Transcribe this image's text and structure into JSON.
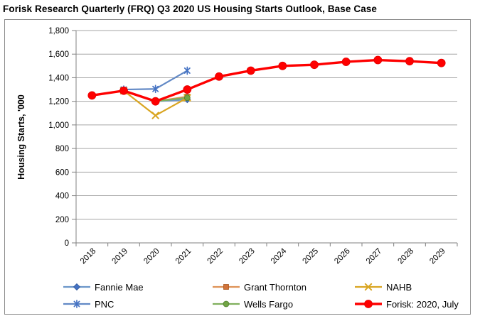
{
  "chart_data": {
    "type": "line",
    "title": "Forisk Research Quarterly (FRQ) Q3 2020 US Housing Starts Outlook, Base Case",
    "xlabel": "",
    "ylabel": "Housing Starts, '000",
    "x": [
      "2018",
      "2019",
      "2020",
      "2021",
      "2022",
      "2023",
      "2024",
      "2025",
      "2026",
      "2027",
      "2028",
      "2029"
    ],
    "ylim": [
      0,
      1800
    ],
    "yticks": [
      0,
      200,
      400,
      600,
      800,
      1000,
      1200,
      1400,
      1600,
      1800
    ],
    "ytick_labels": [
      "0",
      "200",
      "400",
      "600",
      "800",
      "1,000",
      "1,200",
      "1,400",
      "1,600",
      "1,800"
    ],
    "grid": true,
    "legend_position": "bottom",
    "series": [
      {
        "name": "Fannie Mae",
        "marker": "diamond",
        "line_color": "#6b96c9",
        "marker_color": "#4472c4",
        "marker_edge": "#2f5597",
        "x": [
          "2020",
          "2021"
        ],
        "values": [
          1200,
          1215
        ]
      },
      {
        "name": "Grant Thornton",
        "marker": "square",
        "line_color": "#de9155",
        "marker_color": "#d2733a",
        "marker_edge": "#a8571f",
        "x": [
          "2020",
          "2021"
        ],
        "values": [
          1200,
          1240
        ]
      },
      {
        "name": "NAHB",
        "marker": "x",
        "line_color": "#d9a521",
        "marker_color": "#d9a521",
        "marker_edge": "#d9a521",
        "x": [
          "2019",
          "2020",
          "2021"
        ],
        "values": [
          1290,
          1080,
          1230
        ]
      },
      {
        "name": "PNC",
        "marker": "asterisk",
        "line_color": "#6188c5",
        "marker_color": "#4472c4",
        "marker_edge": "#4472c4",
        "x": [
          "2019",
          "2020",
          "2021"
        ],
        "values": [
          1300,
          1305,
          1460
        ]
      },
      {
        "name": "Wells Fargo",
        "marker": "circle",
        "line_color": "#7faf5c",
        "marker_color": "#71a544",
        "marker_edge": "#507e31",
        "x": [
          "2020",
          "2021"
        ],
        "values": [
          1200,
          1230
        ]
      },
      {
        "name": "Forisk: 2020, July",
        "marker": "circle",
        "line_color": "#fe0000",
        "marker_color": "#fe0000",
        "marker_edge": "#e60000",
        "marker_size": 5.5,
        "line_width": 3.4,
        "x": [
          "2018",
          "2019",
          "2020",
          "2021",
          "2022",
          "2023",
          "2024",
          "2025",
          "2026",
          "2027",
          "2028",
          "2029"
        ],
        "values": [
          1250,
          1290,
          1200,
          1300,
          1410,
          1460,
          1500,
          1510,
          1535,
          1550,
          1540,
          1525
        ]
      }
    ],
    "colors": {
      "axis": "#808080",
      "grid": "#a6a6a6",
      "text": "#000000"
    }
  }
}
